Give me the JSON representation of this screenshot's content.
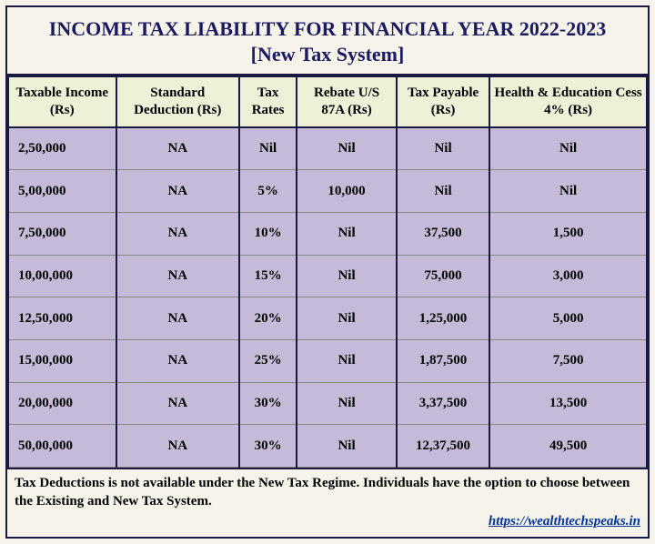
{
  "title_line1": "INCOME TAX LIABILITY FOR FINANCIAL YEAR 2022-2023",
  "title_line2": "[New Tax System]",
  "columns": [
    "Taxable Income (Rs)",
    "Standard Deduction (Rs)",
    "Tax Rates",
    "Rebate U/S 87A (Rs)",
    "Tax Payable (Rs)",
    "Health & Education Cess 4% (Rs)"
  ],
  "rows": [
    [
      "2,50,000",
      "NA",
      "Nil",
      "Nil",
      "Nil",
      "Nil"
    ],
    [
      "5,00,000",
      "NA",
      "5%",
      "10,000",
      "Nil",
      "Nil"
    ],
    [
      "7,50,000",
      "NA",
      "10%",
      "Nil",
      "37,500",
      "1,500"
    ],
    [
      "10,00,000",
      "NA",
      "15%",
      "Nil",
      "75,000",
      "3,000"
    ],
    [
      "12,50,000",
      "NA",
      "20%",
      "Nil",
      "1,25,000",
      "5,000"
    ],
    [
      "15,00,000",
      "NA",
      "25%",
      "Nil",
      "1,87,500",
      "7,500"
    ],
    [
      "20,00,000",
      "NA",
      "30%",
      "Nil",
      "3,37,500",
      "13,500"
    ],
    [
      "50,00,000",
      "NA",
      "30%",
      "Nil",
      "12,37,500",
      "49,500"
    ]
  ],
  "footer_note": "Tax Deductions is not available under the New Tax Regime. Individuals have the option to choose between the Existing and New Tax System.",
  "footer_link": "https://wealthtechspeaks.in",
  "colors": {
    "border": "#1a1a40",
    "title_text": "#1a1a60",
    "header_bg": "#eef0d8",
    "cell_bg": "#c5bbd8",
    "page_bg": "#f5f3ea",
    "link": "#003399"
  }
}
